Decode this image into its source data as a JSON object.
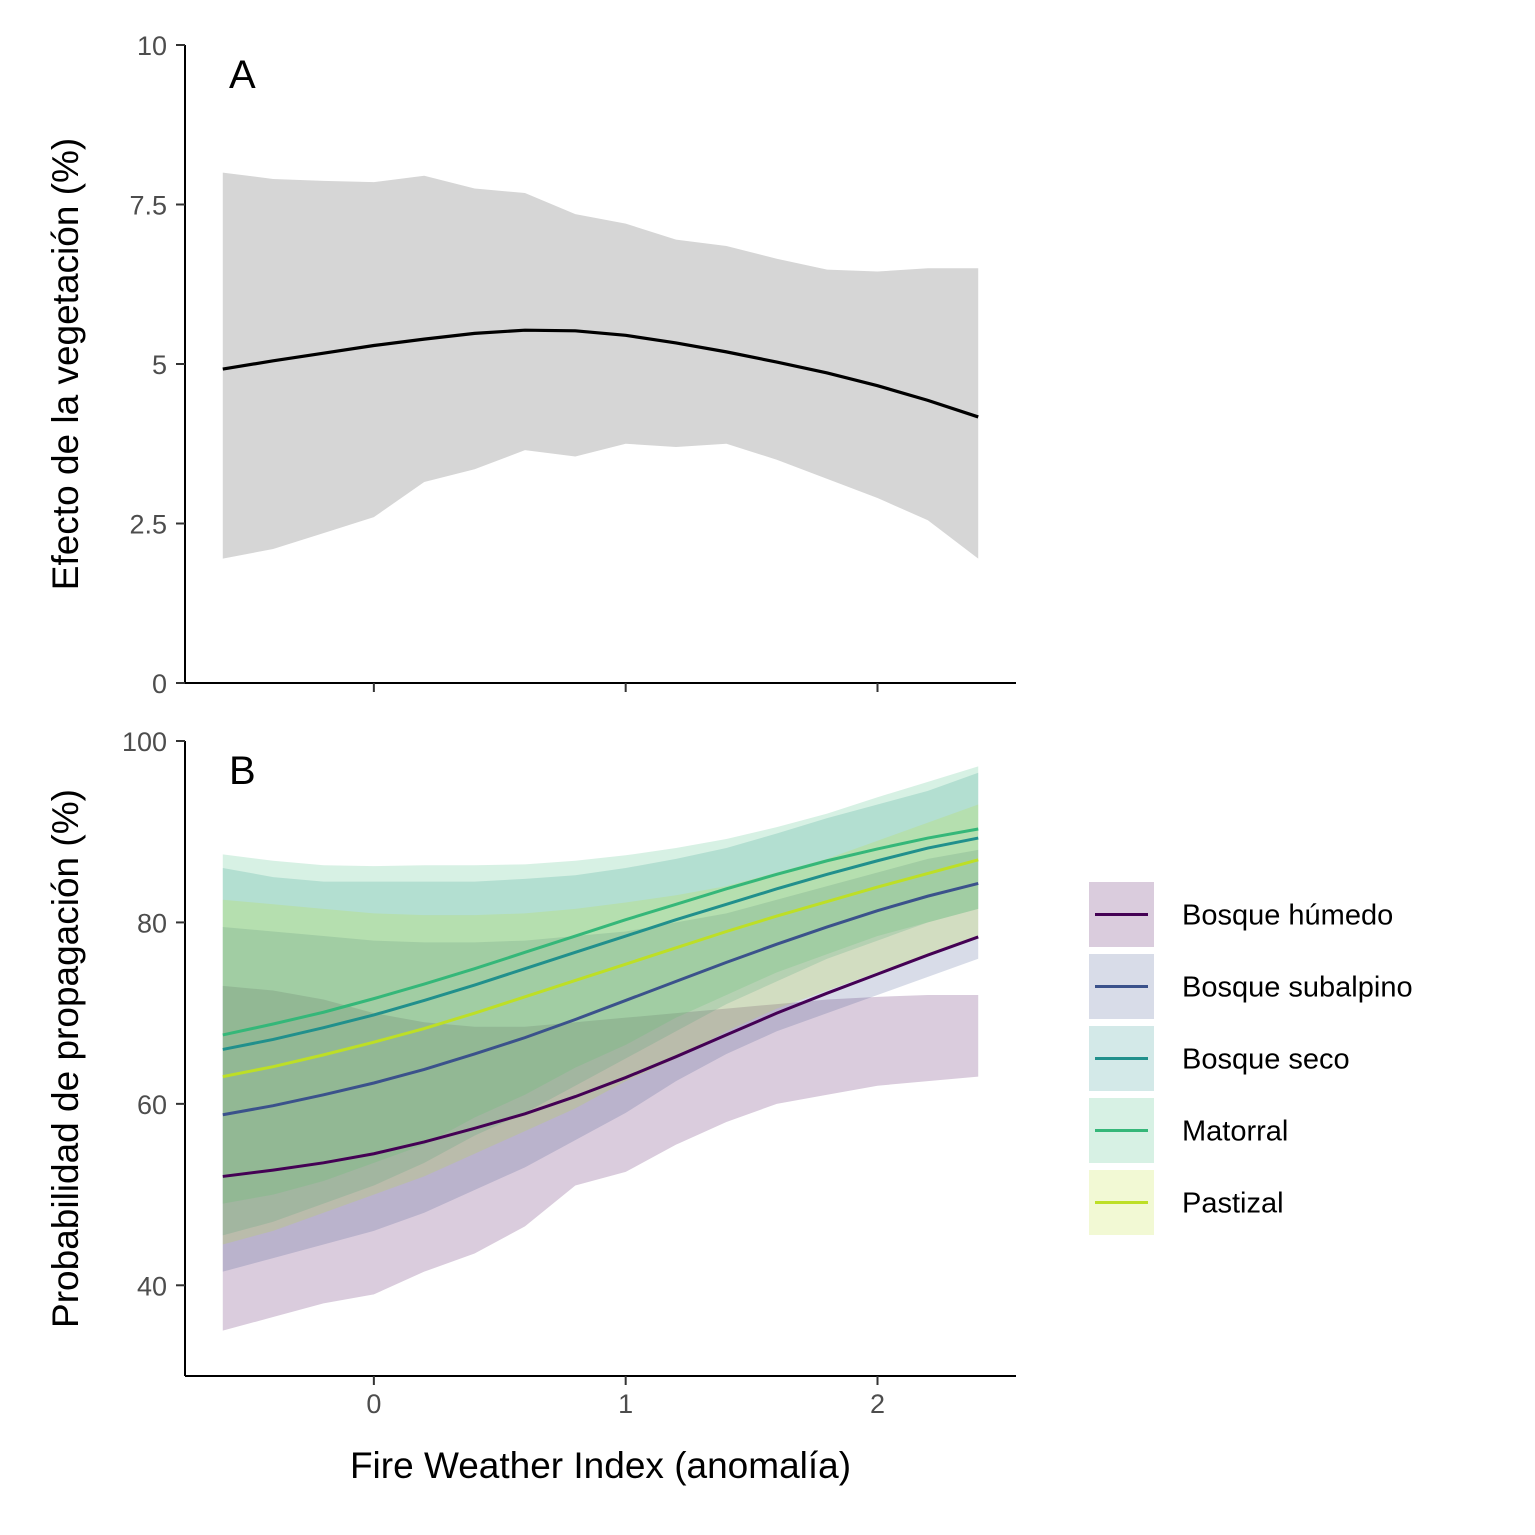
{
  "colors": {
    "panelA_ribbon": "#d6d6d6",
    "panelA_line": "#000000",
    "axis": "#000000",
    "tick_text": "#4d4d4d"
  },
  "x_axis": {
    "title": "Fire Weather Index (anomalía)",
    "range": [
      -0.75,
      2.55
    ],
    "ticks": [
      0,
      1,
      2
    ],
    "tick_labels": [
      "0",
      "1",
      "2"
    ]
  },
  "chart_data": [
    {
      "type": "line",
      "panel_tag": "A",
      "ylabel": "Efecto de la vegetación (%)",
      "xlabel": "",
      "ylim": [
        0,
        10
      ],
      "yticks": [
        0,
        2.5,
        5,
        7.5,
        10
      ],
      "ytick_labels": [
        "0",
        "2.5",
        "5",
        "7.5",
        "10"
      ],
      "grid": false,
      "series": [
        {
          "color": "#000000",
          "fill": "#d6d6d6",
          "x": [
            -0.6,
            -0.4,
            -0.2,
            0.0,
            0.2,
            0.4,
            0.6,
            0.8,
            1.0,
            1.2,
            1.4,
            1.6,
            1.8,
            2.0,
            2.2,
            2.4
          ],
          "y": [
            4.92,
            5.05,
            5.17,
            5.29,
            5.39,
            5.48,
            5.53,
            5.52,
            5.45,
            5.33,
            5.19,
            5.03,
            4.86,
            4.66,
            4.43,
            4.17
          ],
          "lower": [
            1.95,
            2.1,
            2.35,
            2.6,
            3.15,
            3.35,
            3.65,
            3.55,
            3.75,
            3.7,
            3.75,
            3.5,
            3.2,
            2.9,
            2.55,
            1.95
          ],
          "upper": [
            8.0,
            7.9,
            7.87,
            7.85,
            7.95,
            7.75,
            7.68,
            7.35,
            7.2,
            6.95,
            6.85,
            6.65,
            6.48,
            6.45,
            6.5,
            6.5
          ]
        }
      ]
    },
    {
      "type": "line",
      "panel_tag": "B",
      "ylabel": "Probabilidad de propagación (%)",
      "xlabel": "Fire Weather Index (anomalía)",
      "ylim": [
        30,
        100
      ],
      "yticks": [
        40,
        60,
        80,
        100
      ],
      "ytick_labels": [
        "40",
        "60",
        "80",
        "100"
      ],
      "grid": false,
      "legend_position": "right",
      "x": [
        -0.6,
        -0.4,
        -0.2,
        0.0,
        0.2,
        0.4,
        0.6,
        0.8,
        1.0,
        1.2,
        1.4,
        1.6,
        1.8,
        2.0,
        2.2,
        2.4
      ],
      "series": [
        {
          "name": "Bosque húmedo",
          "color": "#440154",
          "y": [
            52.0,
            52.7,
            53.5,
            54.5,
            55.8,
            57.3,
            58.9,
            60.8,
            62.9,
            65.2,
            67.6,
            70.0,
            72.2,
            74.3,
            76.4,
            78.4
          ],
          "lower": [
            35.0,
            36.5,
            38.0,
            39.0,
            41.5,
            43.5,
            46.5,
            51.0,
            52.5,
            55.5,
            58.0,
            60.0,
            61.0,
            62.0,
            62.5,
            63.0
          ],
          "upper": [
            73.0,
            72.5,
            71.5,
            70.0,
            69.0,
            68.5,
            68.5,
            69.0,
            69.5,
            70.0,
            70.5,
            71.0,
            71.5,
            71.8,
            72.0,
            72.0
          ]
        },
        {
          "name": "Bosque subalpino",
          "color": "#3b528b",
          "y": [
            58.8,
            59.8,
            61.0,
            62.3,
            63.8,
            65.5,
            67.3,
            69.3,
            71.4,
            73.5,
            75.6,
            77.6,
            79.5,
            81.3,
            82.9,
            84.3
          ],
          "lower": [
            41.5,
            43.0,
            44.5,
            46.0,
            48.0,
            50.5,
            53.0,
            56.0,
            59.0,
            62.5,
            65.5,
            68.0,
            70.0,
            72.0,
            74.0,
            76.0
          ],
          "upper": [
            79.5,
            79.0,
            78.5,
            78.0,
            77.8,
            77.8,
            78.0,
            78.5,
            79.0,
            80.0,
            81.0,
            82.5,
            84.0,
            85.5,
            87.0,
            88.0
          ]
        },
        {
          "name": "Bosque seco",
          "color": "#21908c",
          "y": [
            66.0,
            67.1,
            68.4,
            69.8,
            71.4,
            73.1,
            74.9,
            76.7,
            78.5,
            80.3,
            82.0,
            83.7,
            85.3,
            86.8,
            88.2,
            89.3
          ],
          "lower": [
            45.5,
            47.0,
            49.0,
            51.0,
            53.5,
            56.5,
            59.0,
            62.0,
            65.0,
            68.0,
            71.0,
            73.5,
            76.0,
            78.0,
            80.0,
            81.5
          ],
          "upper": [
            86.0,
            85.0,
            84.5,
            84.5,
            84.5,
            84.5,
            84.8,
            85.2,
            86.0,
            87.0,
            88.2,
            89.8,
            91.5,
            93.0,
            94.5,
            96.5
          ]
        },
        {
          "name": "Matorral",
          "color": "#35b779",
          "y": [
            67.6,
            68.8,
            70.1,
            71.6,
            73.2,
            74.9,
            76.7,
            78.5,
            80.3,
            82.0,
            83.7,
            85.3,
            86.8,
            88.1,
            89.3,
            90.3
          ],
          "lower": [
            49.0,
            50.0,
            51.5,
            53.5,
            55.5,
            58.5,
            61.0,
            64.0,
            66.5,
            69.5,
            72.0,
            74.5,
            76.5,
            78.5,
            80.0,
            81.5
          ],
          "upper": [
            87.5,
            86.8,
            86.3,
            86.2,
            86.3,
            86.3,
            86.4,
            86.8,
            87.4,
            88.2,
            89.2,
            90.5,
            92.0,
            93.8,
            95.5,
            97.2
          ]
        },
        {
          "name": "Pastizal",
          "color": "#bddf26",
          "y": [
            63.0,
            64.1,
            65.4,
            66.8,
            68.3,
            70.0,
            71.8,
            73.6,
            75.4,
            77.2,
            79.0,
            80.7,
            82.3,
            83.9,
            85.4,
            86.9
          ],
          "lower": [
            44.5,
            46.0,
            48.0,
            50.0,
            52.0,
            54.5,
            57.0,
            59.5,
            62.5,
            65.0,
            68.0,
            70.5,
            72.5,
            74.5,
            76.5,
            78.5
          ],
          "upper": [
            82.5,
            82.0,
            81.5,
            81.0,
            80.8,
            80.8,
            81.0,
            81.5,
            82.2,
            83.0,
            84.0,
            85.5,
            87.0,
            89.0,
            91.0,
            93.0
          ]
        }
      ]
    }
  ]
}
